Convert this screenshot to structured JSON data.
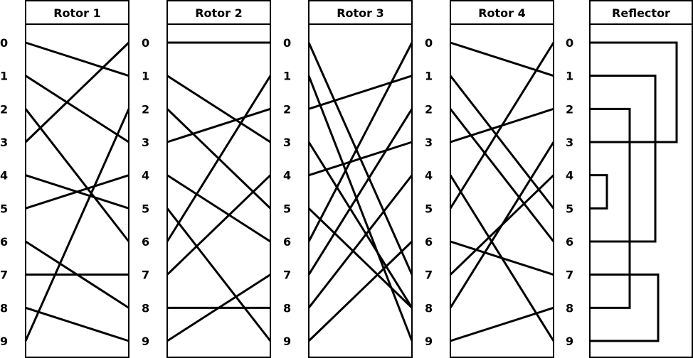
{
  "rotors": [
    {
      "title": "Rotor 1",
      "wiring": [
        [
          0,
          1
        ],
        [
          1,
          3
        ],
        [
          2,
          6
        ],
        [
          3,
          0
        ],
        [
          4,
          5
        ],
        [
          5,
          4
        ],
        [
          6,
          8
        ],
        [
          7,
          7
        ],
        [
          8,
          9
        ],
        [
          9,
          2
        ]
      ]
    },
    {
      "title": "Rotor 2",
      "wiring": [
        [
          0,
          0
        ],
        [
          1,
          3
        ],
        [
          2,
          5
        ],
        [
          3,
          2
        ],
        [
          4,
          6
        ],
        [
          5,
          9
        ],
        [
          6,
          1
        ],
        [
          7,
          4
        ],
        [
          8,
          8
        ],
        [
          9,
          7
        ]
      ]
    },
    {
      "title": "Rotor 3",
      "wiring": [
        [
          0,
          7
        ],
        [
          1,
          9
        ],
        [
          2,
          1
        ],
        [
          3,
          8
        ],
        [
          4,
          3
        ],
        [
          5,
          8
        ],
        [
          6,
          0
        ],
        [
          7,
          2
        ],
        [
          8,
          4
        ],
        [
          9,
          6
        ]
      ]
    },
    {
      "title": "Rotor 4",
      "wiring": [
        [
          0,
          1
        ],
        [
          1,
          5
        ],
        [
          2,
          6
        ],
        [
          3,
          2
        ],
        [
          4,
          9
        ],
        [
          5,
          0
        ],
        [
          6,
          7
        ],
        [
          7,
          4
        ],
        [
          8,
          3
        ],
        [
          9,
          8
        ]
      ]
    }
  ],
  "reflector": {
    "title": "Reflector",
    "pairs": [
      [
        0,
        3
      ],
      [
        1,
        6
      ],
      [
        2,
        8
      ],
      [
        4,
        5
      ],
      [
        7,
        9
      ]
    ]
  },
  "position_labels": [
    "0",
    "1",
    "2",
    "3",
    "4",
    "5",
    "6",
    "7",
    "8",
    "9"
  ]
}
